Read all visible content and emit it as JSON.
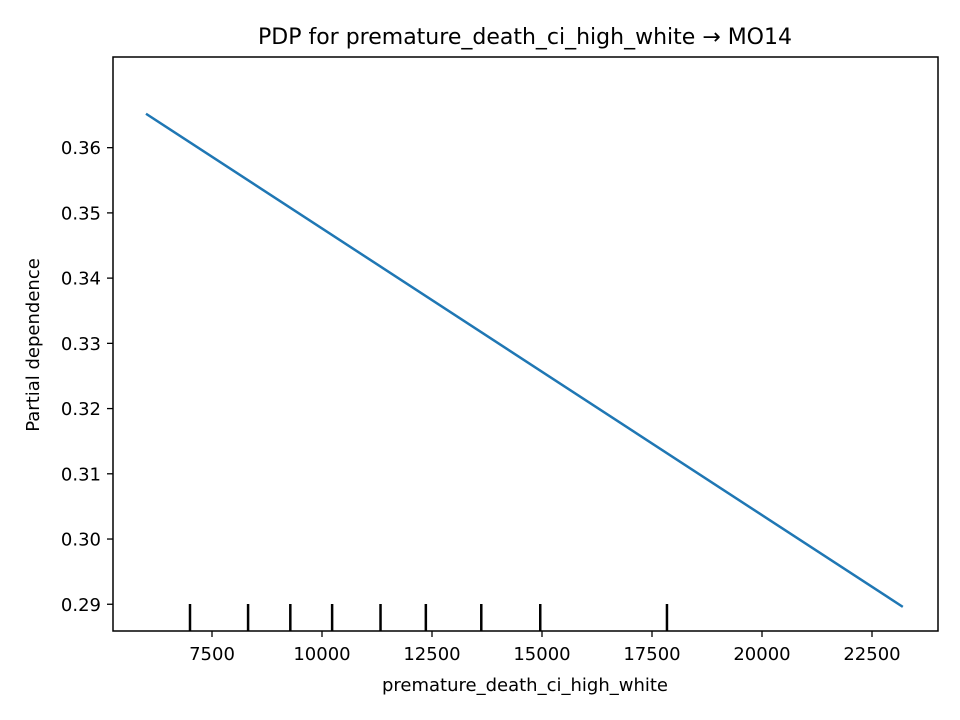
{
  "chart_data": {
    "type": "line",
    "title": "PDP for premature_death_ci_high_white → MO14",
    "xlabel": "premature_death_ci_high_white",
    "ylabel": "Partial dependence",
    "xlim": [
      5250,
      24000
    ],
    "ylim": [
      0.2859,
      0.3739
    ],
    "x_ticks": [
      7500,
      10000,
      12500,
      15000,
      17500,
      20000,
      22500
    ],
    "x_tick_labels": [
      "7500",
      "10000",
      "12500",
      "15000",
      "17500",
      "20000",
      "22500"
    ],
    "y_ticks": [
      0.29,
      0.3,
      0.31,
      0.32,
      0.33,
      0.34,
      0.35,
      0.36
    ],
    "y_tick_labels": [
      "0.29",
      "0.30",
      "0.31",
      "0.32",
      "0.33",
      "0.34",
      "0.35",
      "0.36"
    ],
    "series": [
      {
        "color": "#1f77b4",
        "x": [
          6000,
          23200
        ],
        "y": [
          0.3652,
          0.2896
        ]
      }
    ],
    "deciles": [
      7000,
      8320,
      9280,
      10230,
      11330,
      12360,
      13620,
      14960,
      17840
    ],
    "grid": false
  }
}
